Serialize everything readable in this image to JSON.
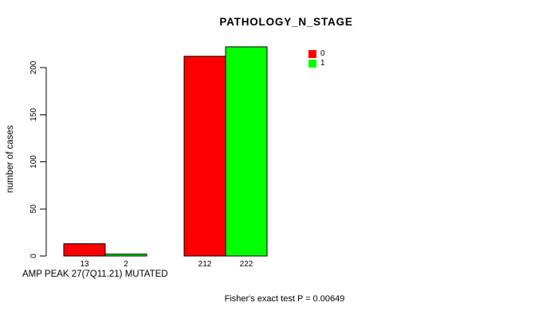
{
  "chart_data": {
    "type": "bar",
    "title": "PATHOLOGY_N_STAGE",
    "xlabel": "AMP PEAK 27(7Q11.21) MUTATED",
    "ylabel": "number of cases",
    "ylim": [
      0,
      200
    ],
    "yticks": [
      0,
      50,
      100,
      150,
      200
    ],
    "categories": [
      "",
      ""
    ],
    "series": [
      {
        "name": "0",
        "color": "#FF0000",
        "values": [
          13,
          212
        ]
      },
      {
        "name": "1",
        "color": "#00FF00",
        "values": [
          2,
          222
        ]
      }
    ],
    "show_value_labels": true,
    "bar_border_color": "#000000",
    "legend_position": "top-right",
    "grid": false,
    "background": "#FFFFFF",
    "annotation": "Fisher's exact test P = 0.00649"
  }
}
